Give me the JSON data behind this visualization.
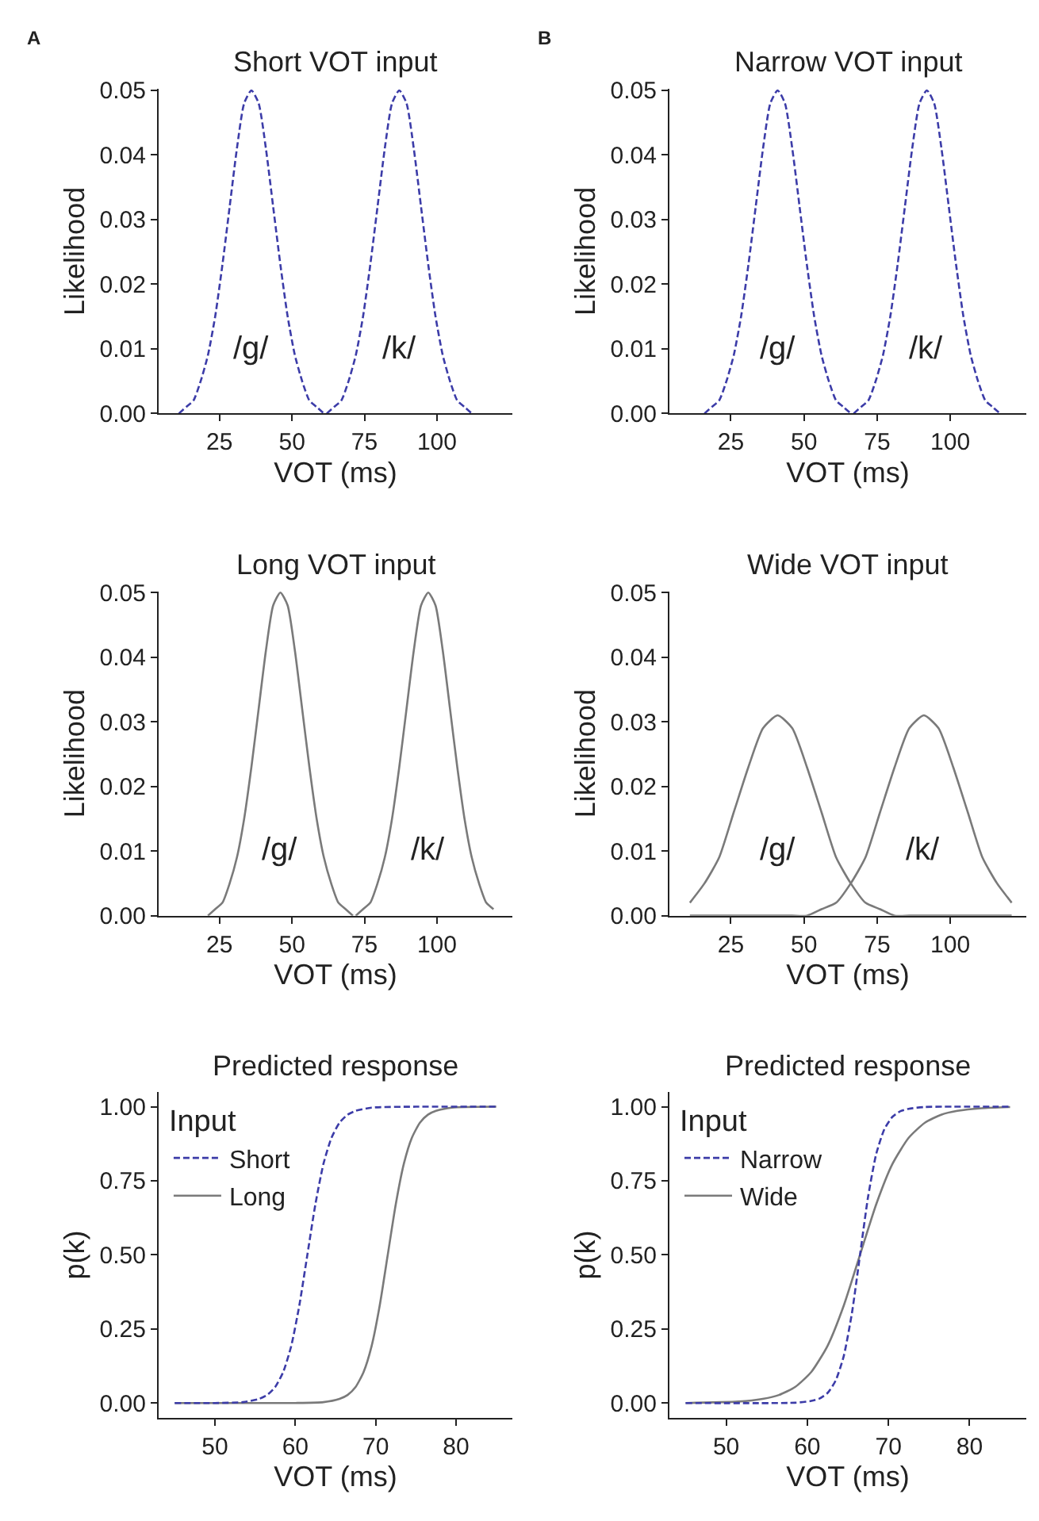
{
  "chart_data": [
    {
      "type": "line",
      "title": "Short VOT input",
      "xlabel": "VOT (ms)",
      "ylabel": "Likelihood",
      "xlim": [
        4,
        126
      ],
      "xticks": [
        25,
        50,
        75,
        100
      ],
      "ylim": [
        0,
        0.0502
      ],
      "yticks": [
        {
          "value": 0,
          "label": "0.00"
        },
        {
          "value": 0.01,
          "label": "0.01"
        },
        {
          "value": 0.02,
          "label": "0.02"
        },
        {
          "value": 0.03,
          "label": "0.03"
        },
        {
          "value": 0.04,
          "label": "0.04"
        },
        {
          "value": 0.05,
          "label": "0.05"
        }
      ],
      "annotations": [
        "A",
        "/g/",
        "/k/"
      ],
      "series": [
        {
          "color": "#3c3ca8",
          "line_style": "dashed",
          "x": [
            11,
            13.5,
            16,
            18.5,
            21,
            23.5,
            26,
            28.5,
            31,
            33.5,
            36,
            38.5,
            41,
            43.5,
            46,
            48.5,
            51,
            53.5,
            56,
            58.5,
            61
          ],
          "values": [
            0.0,
            0.001,
            0.002,
            0.005,
            0.009,
            0.015,
            0.023,
            0.032,
            0.041,
            0.048,
            0.05,
            0.048,
            0.041,
            0.032,
            0.023,
            0.015,
            0.009,
            0.005,
            0.002,
            0.001,
            0.0
          ]
        },
        {
          "color": "#3c3ca8",
          "line_style": "dashed",
          "x": [
            62,
            64.5,
            67,
            69.5,
            72,
            74.5,
            77,
            79.5,
            82,
            84.5,
            87,
            89.5,
            92,
            94.5,
            97,
            99.5,
            102,
            104.5,
            107,
            109.5,
            112
          ],
          "values": [
            0.0,
            0.001,
            0.002,
            0.005,
            0.009,
            0.015,
            0.023,
            0.032,
            0.041,
            0.048,
            0.05,
            0.048,
            0.041,
            0.032,
            0.023,
            0.015,
            0.009,
            0.005,
            0.002,
            0.001,
            0.0
          ]
        }
      ]
    },
    {
      "type": "line",
      "title": "Narrow VOT input",
      "xlabel": "VOT (ms)",
      "ylabel": "Likelihood",
      "xlim": [
        4,
        126
      ],
      "xticks": [
        25,
        50,
        75,
        100
      ],
      "ylim": [
        0,
        0.0502
      ],
      "yticks": [
        {
          "value": 0,
          "label": "0.00"
        },
        {
          "value": 0.01,
          "label": "0.01"
        },
        {
          "value": 0.02,
          "label": "0.02"
        },
        {
          "value": 0.03,
          "label": "0.03"
        },
        {
          "value": 0.04,
          "label": "0.04"
        },
        {
          "value": 0.05,
          "label": "0.05"
        }
      ],
      "annotations": [
        "B",
        "/g/",
        "/k/"
      ],
      "series": [
        {
          "color": "#3c3ca8",
          "line_style": "dashed",
          "x": [
            16,
            18.5,
            21,
            23.5,
            26,
            28.5,
            31,
            33.5,
            36,
            38.5,
            41,
            43.5,
            46,
            48.5,
            51,
            53.5,
            56,
            58.5,
            61,
            63.5,
            66
          ],
          "values": [
            0.0,
            0.001,
            0.002,
            0.005,
            0.009,
            0.015,
            0.023,
            0.032,
            0.041,
            0.048,
            0.05,
            0.048,
            0.041,
            0.032,
            0.023,
            0.015,
            0.009,
            0.005,
            0.002,
            0.001,
            0.0
          ]
        },
        {
          "color": "#3c3ca8",
          "line_style": "dashed",
          "x": [
            67,
            69.5,
            72,
            74.5,
            77,
            79.5,
            82,
            84.5,
            87,
            89.5,
            92,
            94.5,
            97,
            99.5,
            102,
            104.5,
            107,
            109.5,
            112,
            114.5,
            117
          ],
          "values": [
            0.0,
            0.001,
            0.002,
            0.005,
            0.009,
            0.015,
            0.023,
            0.032,
            0.041,
            0.048,
            0.05,
            0.048,
            0.041,
            0.032,
            0.023,
            0.015,
            0.009,
            0.005,
            0.002,
            0.001,
            0.0
          ]
        }
      ]
    },
    {
      "type": "line",
      "title": "Long VOT input",
      "xlabel": "VOT (ms)",
      "ylabel": "Likelihood",
      "xlim": [
        4,
        126
      ],
      "xticks": [
        25,
        50,
        75,
        100
      ],
      "ylim": [
        0,
        0.0502
      ],
      "yticks": [
        {
          "value": 0,
          "label": "0.00"
        },
        {
          "value": 0.01,
          "label": "0.01"
        },
        {
          "value": 0.02,
          "label": "0.02"
        },
        {
          "value": 0.03,
          "label": "0.03"
        },
        {
          "value": 0.04,
          "label": "0.04"
        },
        {
          "value": 0.05,
          "label": "0.05"
        }
      ],
      "annotations": [
        "/g/",
        "/k/"
      ],
      "series": [
        {
          "color": "#7a7a7a",
          "line_style": "solid",
          "x": [
            21,
            23.5,
            26,
            28.5,
            31,
            33.5,
            36,
            38.5,
            41,
            43.5,
            46,
            48.5,
            51,
            53.5,
            56,
            58.5,
            61,
            63.5,
            66,
            68.5,
            71
          ],
          "values": [
            0.0,
            0.001,
            0.002,
            0.005,
            0.009,
            0.015,
            0.023,
            0.032,
            0.041,
            0.048,
            0.05,
            0.048,
            0.041,
            0.032,
            0.023,
            0.015,
            0.009,
            0.005,
            0.002,
            0.001,
            0.0
          ]
        },
        {
          "color": "#7a7a7a",
          "line_style": "solid",
          "x": [
            72,
            74.5,
            77,
            79.5,
            82,
            84.5,
            87,
            89.5,
            92,
            94.5,
            97,
            99.5,
            102,
            104.5,
            107,
            109.5,
            112,
            114.5,
            117,
            119.5
          ],
          "values": [
            0.0,
            0.001,
            0.002,
            0.005,
            0.009,
            0.015,
            0.023,
            0.032,
            0.041,
            0.048,
            0.05,
            0.048,
            0.041,
            0.032,
            0.023,
            0.015,
            0.009,
            0.005,
            0.002,
            0.001
          ]
        }
      ]
    },
    {
      "type": "line",
      "title": "Wide VOT input",
      "xlabel": "VOT (ms)",
      "ylabel": "Likelihood",
      "xlim": [
        4,
        126
      ],
      "xticks": [
        25,
        50,
        75,
        100
      ],
      "ylim": [
        0,
        0.0502
      ],
      "yticks": [
        {
          "value": 0,
          "label": "0.00"
        },
        {
          "value": 0.01,
          "label": "0.01"
        },
        {
          "value": 0.02,
          "label": "0.02"
        },
        {
          "value": 0.03,
          "label": "0.03"
        },
        {
          "value": 0.04,
          "label": "0.04"
        },
        {
          "value": 0.05,
          "label": "0.05"
        }
      ],
      "annotations": [
        "/g/",
        "/k/"
      ],
      "series": [
        {
          "color": "#7a7a7a",
          "line_style": "solid",
          "x": [
            11,
            16,
            21,
            26,
            31,
            36,
            41,
            46,
            51,
            56,
            61,
            66,
            71,
            76,
            81,
            86,
            91,
            96,
            101,
            106,
            111,
            116,
            121
          ],
          "values": [
            0.002,
            0.005,
            0.009,
            0.016,
            0.023,
            0.029,
            0.031,
            0.029,
            0.023,
            0.016,
            0.009,
            0.005,
            0.002,
            0.001,
            0.0,
            0.0,
            0.0,
            0.0,
            0.0,
            0.0,
            0.0,
            0.0,
            0.0
          ]
        },
        {
          "color": "#7a7a7a",
          "line_style": "solid",
          "x": [
            11,
            16,
            21,
            26,
            31,
            36,
            41,
            46,
            51,
            56,
            61,
            66,
            71,
            76,
            81,
            86,
            91,
            96,
            101,
            106,
            111,
            116,
            121
          ],
          "values": [
            0.0,
            0.0,
            0.0,
            0.0,
            0.0,
            0.0,
            0.0,
            0.0,
            0.0,
            0.001,
            0.002,
            0.005,
            0.009,
            0.016,
            0.023,
            0.029,
            0.031,
            0.029,
            0.023,
            0.016,
            0.009,
            0.005,
            0.002
          ]
        }
      ]
    },
    {
      "type": "line",
      "title": "Predicted response",
      "xlabel": "VOT (ms)",
      "ylabel": "p(k)",
      "xlim": [
        43,
        87
      ],
      "xticks": [
        50,
        60,
        70,
        80
      ],
      "ylim": [
        -0.05,
        1.05
      ],
      "yticks": [
        {
          "value": 0,
          "label": "0.00"
        },
        {
          "value": 0.25,
          "label": "0.25"
        },
        {
          "value": 0.5,
          "label": "0.50"
        },
        {
          "value": 0.75,
          "label": "0.75"
        },
        {
          "value": 1,
          "label": "1.00"
        }
      ],
      "legend": "top left",
      "legend_title": "Input",
      "series": [
        {
          "name": "Short",
          "color": "#3c3ca8",
          "line_style": "dashed",
          "x": [
            45,
            50,
            53.5,
            55.5,
            56.5,
            57.5,
            58.5,
            59.5,
            60.5,
            61.5,
            62.5,
            63.5,
            64.5,
            65.5,
            66.5,
            67.5,
            69.5,
            75,
            85
          ],
          "values": [
            0.0,
            0.0,
            0.003,
            0.014,
            0.027,
            0.054,
            0.105,
            0.193,
            0.329,
            0.5,
            0.671,
            0.807,
            0.895,
            0.946,
            0.973,
            0.986,
            0.997,
            1.0,
            1.0
          ]
        },
        {
          "name": "Long",
          "color": "#7a7a7a",
          "line_style": "solid",
          "x": [
            45,
            60,
            63.5,
            65.5,
            66.5,
            67.5,
            68.5,
            69.5,
            70.5,
            71.5,
            72.5,
            73.5,
            74.5,
            75.5,
            76.5,
            77.5,
            79.5,
            85
          ],
          "values": [
            0.0,
            0.0,
            0.003,
            0.014,
            0.027,
            0.054,
            0.105,
            0.193,
            0.329,
            0.5,
            0.671,
            0.807,
            0.895,
            0.946,
            0.973,
            0.986,
            0.997,
            1.0
          ]
        }
      ]
    },
    {
      "type": "line",
      "title": "Predicted response",
      "xlabel": "VOT (ms)",
      "ylabel": "p(k)",
      "xlim": [
        43,
        87
      ],
      "xticks": [
        50,
        60,
        70,
        80
      ],
      "ylim": [
        -0.05,
        1.05
      ],
      "yticks": [
        {
          "value": 0,
          "label": "0.00"
        },
        {
          "value": 0.25,
          "label": "0.25"
        },
        {
          "value": 0.5,
          "label": "0.50"
        },
        {
          "value": 0.75,
          "label": "0.75"
        },
        {
          "value": 1,
          "label": "1.00"
        }
      ],
      "legend": "top left",
      "legend_title": "Input",
      "series": [
        {
          "name": "Narrow",
          "color": "#3c3ca8",
          "line_style": "dashed",
          "x": [
            45,
            58.5,
            60.5,
            61.5,
            62.5,
            63.5,
            64.5,
            65.5,
            66.5,
            67.5,
            68.5,
            69.5,
            70.5,
            71.5,
            72.5,
            74.5,
            85
          ],
          "values": [
            0.0,
            0.001,
            0.007,
            0.015,
            0.034,
            0.076,
            0.159,
            0.303,
            0.5,
            0.697,
            0.841,
            0.924,
            0.966,
            0.985,
            0.993,
            0.999,
            1.0
          ]
        },
        {
          "name": "Wide",
          "color": "#7a7a7a",
          "line_style": "solid",
          "x": [
            45,
            51.5,
            54.5,
            56.5,
            58.5,
            60.5,
            62.5,
            64.5,
            66.5,
            68.5,
            70.5,
            72.5,
            74.5,
            76.5,
            78.5,
            81.5,
            85
          ],
          "values": [
            0.0,
            0.005,
            0.014,
            0.027,
            0.054,
            0.105,
            0.193,
            0.329,
            0.5,
            0.671,
            0.807,
            0.895,
            0.946,
            0.973,
            0.986,
            0.995,
            0.999
          ]
        }
      ]
    }
  ]
}
